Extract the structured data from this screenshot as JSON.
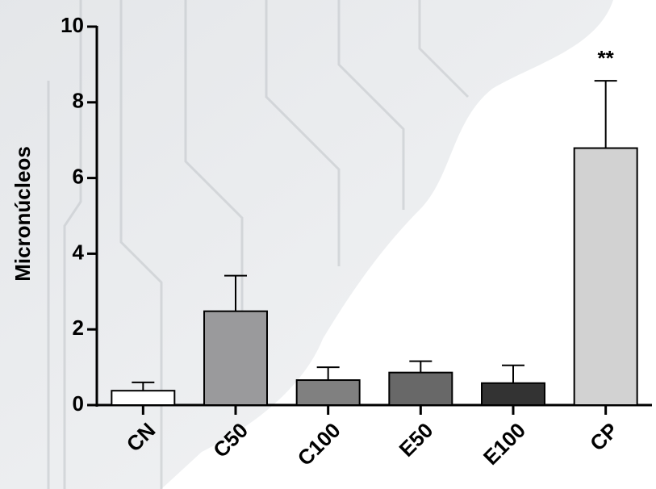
{
  "chart_data": {
    "type": "bar",
    "y_label": "Micronúcleos",
    "categories": [
      "CN",
      "C50",
      "C100",
      "E50",
      "E100",
      "CP"
    ],
    "values": [
      0.38,
      2.48,
      0.66,
      0.86,
      0.58,
      6.79
    ],
    "errors": [
      0.22,
      0.94,
      0.34,
      0.3,
      0.47,
      1.78
    ],
    "colors": [
      "#ffffff",
      "#9a9a9c",
      "#808080",
      "#686868",
      "#333333",
      "#d2d2d2"
    ],
    "ylim": [
      0,
      10
    ],
    "yticks": [
      0,
      2,
      4,
      6,
      8,
      10
    ],
    "annotations": [
      {
        "text": "**",
        "category": "CP"
      }
    ]
  }
}
